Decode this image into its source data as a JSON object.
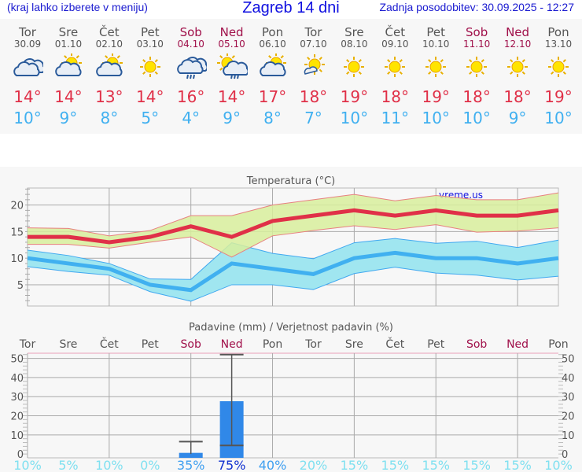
{
  "header": {
    "hint": "(kraj lahko izberete v meniju)",
    "title": "Zagreb 14 dni",
    "updated": "Zadnja posodobitev: 30.09.2025 - 12:27"
  },
  "colors": {
    "max": "#e03048",
    "min": "#40b0f0",
    "weekend": "#a0104a",
    "max_band": "#d8ee9c",
    "min_band": "#a0e6f0",
    "bar": "#3088e8"
  },
  "days": [
    {
      "name": "Tor",
      "date": "30.09",
      "icon": "cloudy",
      "max": "14°",
      "min": "10°",
      "weekend": false,
      "prob": "10%"
    },
    {
      "name": "Sre",
      "date": "01.10",
      "icon": "partly-cloudy",
      "max": "14°",
      "min": "9°",
      "weekend": false,
      "prob": "5%"
    },
    {
      "name": "Čet",
      "date": "02.10",
      "icon": "partly-cloudy",
      "max": "13°",
      "min": "8°",
      "weekend": false,
      "prob": "10%"
    },
    {
      "name": "Pet",
      "date": "03.10",
      "icon": "sunny",
      "max": "14°",
      "min": "5°",
      "weekend": false,
      "prob": "0%"
    },
    {
      "name": "Sob",
      "date": "04.10",
      "icon": "rain",
      "max": "16°",
      "min": "4°",
      "weekend": true,
      "prob": "35%"
    },
    {
      "name": "Ned",
      "date": "05.10",
      "icon": "sun-rain",
      "max": "14°",
      "min": "9°",
      "weekend": true,
      "prob": "75%"
    },
    {
      "name": "Pon",
      "date": "06.10",
      "icon": "partly-cloudy",
      "max": "17°",
      "min": "8°",
      "weekend": false,
      "prob": "40%"
    },
    {
      "name": "Tor",
      "date": "07.10",
      "icon": "mostly-sunny",
      "max": "18°",
      "min": "7°",
      "weekend": false,
      "prob": "20%"
    },
    {
      "name": "Sre",
      "date": "08.10",
      "icon": "sunny",
      "max": "19°",
      "min": "10°",
      "weekend": false,
      "prob": "15%"
    },
    {
      "name": "Čet",
      "date": "09.10",
      "icon": "sunny",
      "max": "18°",
      "min": "11°",
      "weekend": false,
      "prob": "15%"
    },
    {
      "name": "Pet",
      "date": "10.10",
      "icon": "sunny",
      "max": "19°",
      "min": "10°",
      "weekend": false,
      "prob": "15%"
    },
    {
      "name": "Sob",
      "date": "11.10",
      "icon": "sunny",
      "max": "18°",
      "min": "10°",
      "weekend": true,
      "prob": "15%"
    },
    {
      "name": "Ned",
      "date": "12.10",
      "icon": "sunny",
      "max": "18°",
      "min": "9°",
      "weekend": true,
      "prob": "15%"
    },
    {
      "name": "Pon",
      "date": "13.10",
      "icon": "sunny",
      "max": "19°",
      "min": "10°",
      "weekend": false,
      "prob": "10%"
    }
  ],
  "chart_data": [
    {
      "type": "line",
      "title": "Temperatura (°C)",
      "watermark": "vreme.us",
      "ylim": [
        1,
        23.2
      ],
      "yticks": [
        "5",
        "10",
        "15",
        "20"
      ],
      "grid": true,
      "series": [
        {
          "role": "max",
          "values": [
            14,
            14,
            13,
            14,
            16,
            14,
            17,
            18,
            19,
            18,
            19,
            18,
            18,
            19
          ],
          "upper": [
            15.7,
            15.6,
            14.2,
            15.2,
            18,
            18,
            20,
            21,
            22,
            20.8,
            21.8,
            21,
            21,
            22.3
          ],
          "lower": [
            12.6,
            12.6,
            11.9,
            13,
            14,
            10.2,
            14.2,
            15.2,
            16.1,
            15.4,
            16.3,
            14.9,
            15.1,
            15.7
          ]
        },
        {
          "role": "min",
          "values": [
            10,
            9,
            8,
            5,
            4,
            9,
            8,
            7,
            10,
            11,
            10,
            10,
            9,
            10
          ],
          "upper": [
            11.5,
            10.5,
            9,
            6.1,
            6,
            12.9,
            10.9,
            9.9,
            12.9,
            13.7,
            12.8,
            13.2,
            12,
            13.4
          ],
          "lower": [
            8.4,
            7.5,
            6.8,
            3.7,
            1.9,
            5,
            5,
            4.1,
            7.1,
            8.3,
            7.2,
            6.8,
            5.9,
            6.6
          ]
        }
      ]
    },
    {
      "type": "bar",
      "title": "Padavine (mm) / Verjetnost padavin (%)",
      "ylim": [
        -2,
        52.7
      ],
      "yticks": [
        "0",
        "10",
        "20",
        "30",
        "40",
        "50"
      ],
      "grid": true,
      "values": [
        0,
        0,
        0,
        0,
        0.6,
        27.6,
        0,
        0,
        0,
        0,
        0,
        0,
        0,
        0
      ],
      "err_low": [
        null,
        null,
        null,
        null,
        0,
        4.5,
        null,
        null,
        null,
        null,
        null,
        null,
        null,
        null
      ],
      "err_high": [
        null,
        null,
        null,
        null,
        6.5,
        52,
        null,
        null,
        null,
        null,
        null,
        null,
        null,
        null
      ]
    }
  ]
}
